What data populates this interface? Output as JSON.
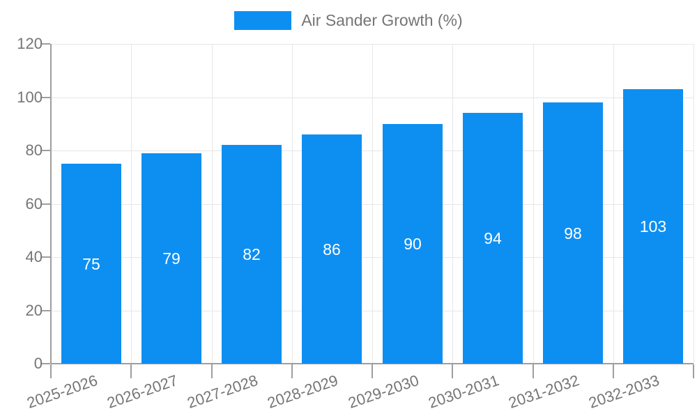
{
  "legend": {
    "label": "Air Sander Growth (%)"
  },
  "colors": {
    "bar": "#0d8ff2",
    "axis": "#9e9e9e",
    "grid": "#e6e6e6",
    "tick_text": "#757575",
    "value_text": "#ffffff",
    "background": "#ffffff"
  },
  "chart_data": {
    "type": "bar",
    "title": "Air Sander Growth (%)",
    "categories": [
      "2025-2026",
      "2026-2027",
      "2027-2028",
      "2028-2029",
      "2029-2030",
      "2030-2031",
      "2031-2032",
      "2032-2033"
    ],
    "values": [
      75,
      79,
      82,
      86,
      90,
      94,
      98,
      103
    ],
    "value_labels": [
      "75",
      "79",
      "82",
      "86",
      "90",
      "94",
      "98",
      "103"
    ],
    "xlabel": "",
    "ylabel": "",
    "ylim": [
      0,
      120
    ],
    "yticks": [
      0,
      20,
      40,
      60,
      80,
      100,
      120
    ],
    "grid": true,
    "legend_position": "top",
    "value_label_position": "inside-middle",
    "x_label_rotation_deg": -19
  }
}
